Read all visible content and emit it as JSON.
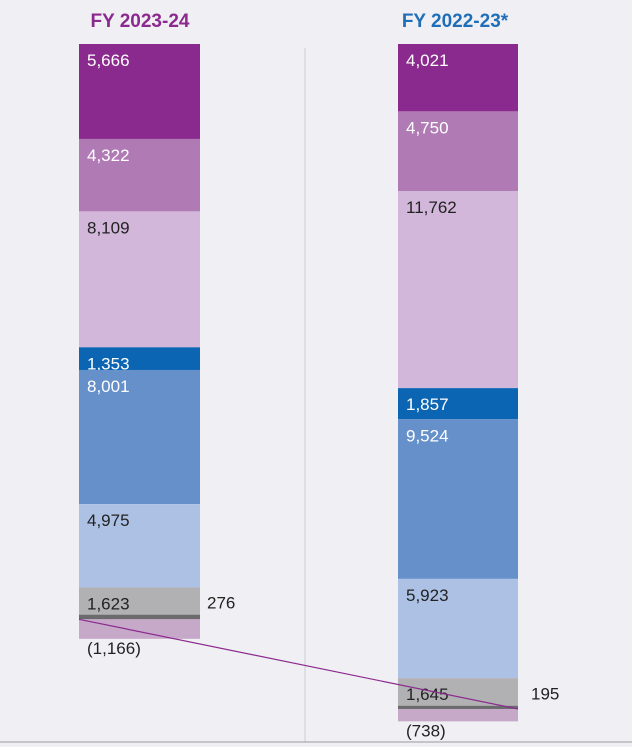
{
  "chart_data": {
    "type": "bar",
    "stacked": true,
    "categories": [
      "FY 2023-24",
      "FY 2022-23*"
    ],
    "title_colors": [
      "#8b2a8e",
      "#1f6fb8"
    ],
    "segment_colors": [
      "#8b2a8e",
      "#b07ab5",
      "#d2b7da",
      "#0b65b3",
      "#6590c9",
      "#adc1e5",
      "#b1b1b3",
      "#6b6b6d",
      "#c6a8c8"
    ],
    "series": [
      {
        "values": [
          5666,
          4021
        ],
        "labels": [
          "5,666",
          "4,021"
        ],
        "label_color": "#ffffff"
      },
      {
        "values": [
          4322,
          4750
        ],
        "labels": [
          "4,322",
          "4,750"
        ],
        "label_color": "#ffffff"
      },
      {
        "values": [
          8109,
          11762
        ],
        "labels": [
          "8,109",
          "11,762"
        ],
        "label_color": "#222222"
      },
      {
        "values": [
          1353,
          1857
        ],
        "labels": [
          "1,353",
          "1,857"
        ],
        "label_color": "#ffffff"
      },
      {
        "values": [
          8001,
          9524
        ],
        "labels": [
          "8,001",
          "9,524"
        ],
        "label_color": "#ffffff"
      },
      {
        "values": [
          4975,
          5923
        ],
        "labels": [
          "4,975",
          "5,923"
        ],
        "label_color": "#222222"
      },
      {
        "values": [
          1623,
          1645
        ],
        "labels": [
          "1,623",
          "1,645"
        ],
        "label_color": "#222222"
      },
      {
        "values": [
          276,
          195
        ],
        "labels": [
          "276",
          "195"
        ],
        "label_color": "#222222"
      },
      {
        "values": [
          -1166,
          -738
        ],
        "labels": [
          "(1,166)",
          "(738)"
        ],
        "label_color": "#222222"
      }
    ],
    "grid": false,
    "legend": "none"
  }
}
